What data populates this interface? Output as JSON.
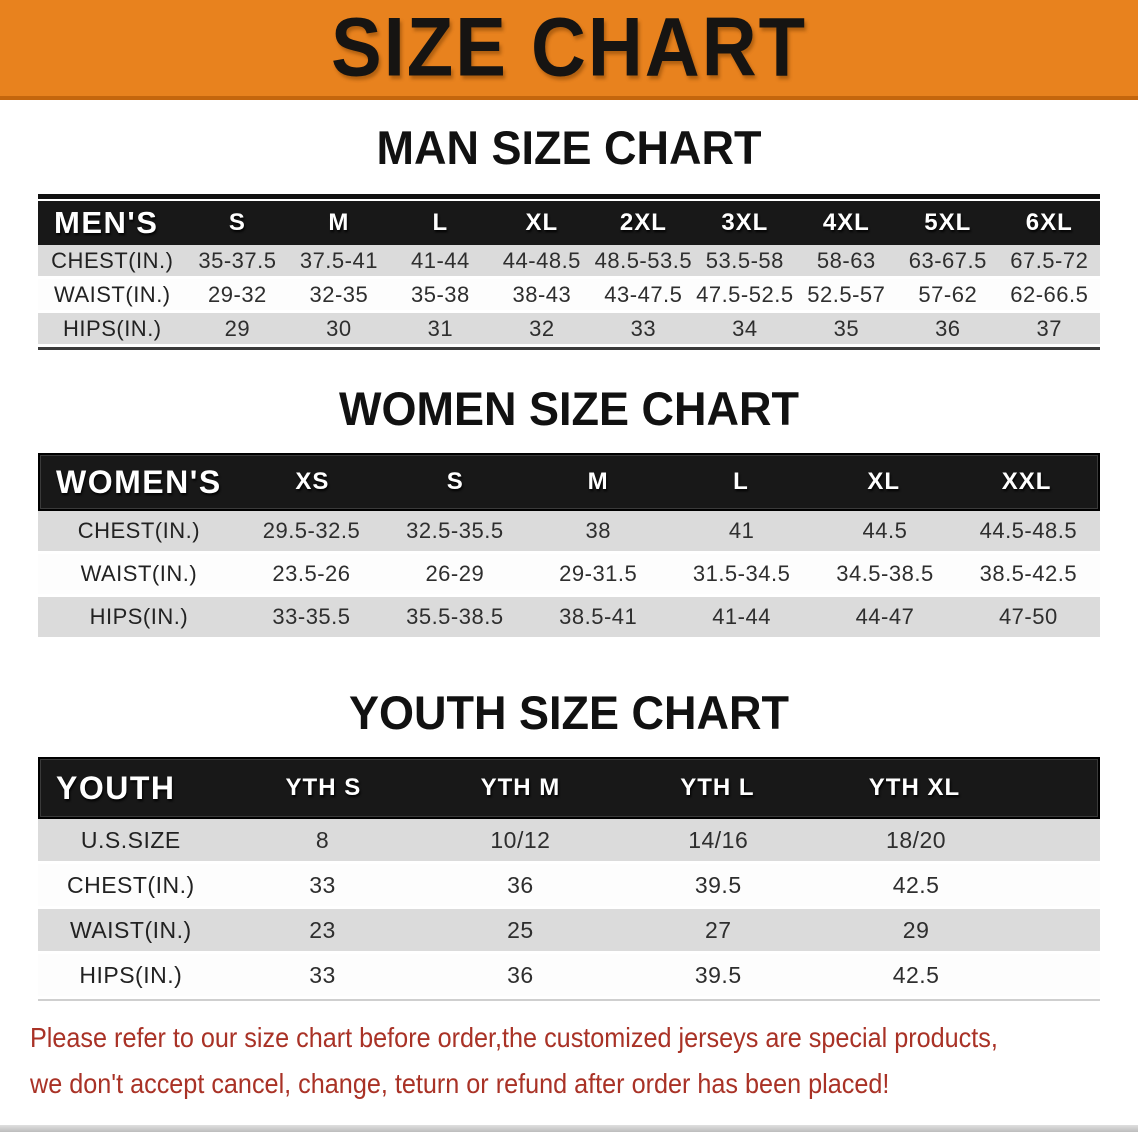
{
  "banner": {
    "title": "SIZE CHART",
    "bg_color": "#E8821E"
  },
  "sections": [
    {
      "heading": "MAN SIZE CHART",
      "table": {
        "label": "MEN'S",
        "columns": [
          "S",
          "M",
          "L",
          "XL",
          "2XL",
          "3XL",
          "4XL",
          "5XL",
          "6XL"
        ],
        "rows": [
          {
            "label": "CHEST(IN.)",
            "values": [
              "35-37.5",
              "37.5-41",
              "41-44",
              "44-48.5",
              "48.5-53.5",
              "53.5-58",
              "58-63",
              "63-67.5",
              "67.5-72"
            ]
          },
          {
            "label": "WAIST(IN.)",
            "values": [
              "29-32",
              "32-35",
              "35-38",
              "38-43",
              "43-47.5",
              "47.5-52.5",
              "52.5-57",
              "57-62",
              "62-66.5"
            ]
          },
          {
            "label": "HIPS(IN.)",
            "values": [
              "29",
              "30",
              "31",
              "32",
              "33",
              "34",
              "35",
              "36",
              "37"
            ]
          }
        ]
      }
    },
    {
      "heading": "WOMEN SIZE CHART",
      "table": {
        "label": "WOMEN'S",
        "columns": [
          "XS",
          "S",
          "M",
          "L",
          "XL",
          "XXL"
        ],
        "rows": [
          {
            "label": "CHEST(IN.)",
            "values": [
              "29.5-32.5",
              "32.5-35.5",
              "38",
              "41",
              "44.5",
              "44.5-48.5"
            ]
          },
          {
            "label": "WAIST(IN.)",
            "values": [
              "23.5-26",
              "26-29",
              "29-31.5",
              "31.5-34.5",
              "34.5-38.5",
              "38.5-42.5"
            ]
          },
          {
            "label": "HIPS(IN.)",
            "values": [
              "33-35.5",
              "35.5-38.5",
              "38.5-41",
              "41-44",
              "44-47",
              "47-50"
            ]
          }
        ]
      }
    },
    {
      "heading": "YOUTH SIZE CHART",
      "table": {
        "label": "YOUTH",
        "columns": [
          "YTH S",
          "YTH M",
          "YTH L",
          "YTH XL"
        ],
        "rows": [
          {
            "label": "U.S.SIZE",
            "values": [
              "8",
              "10/12",
              "14/16",
              "18/20"
            ]
          },
          {
            "label": "CHEST(IN.)",
            "values": [
              "33",
              "36",
              "39.5",
              "42.5"
            ]
          },
          {
            "label": "WAIST(IN.)",
            "values": [
              "23",
              "25",
              "27",
              "29"
            ]
          },
          {
            "label": "HIPS(IN.)",
            "values": [
              "33",
              "36",
              "39.5",
              "42.5"
            ]
          }
        ]
      }
    }
  ],
  "disclaimer": {
    "line1": "Please refer to our size chart before order,the customized jerseys are special products,",
    "line2": "we don't accept cancel, change, teturn or refund after order has been placed!",
    "color": "#A93226"
  }
}
